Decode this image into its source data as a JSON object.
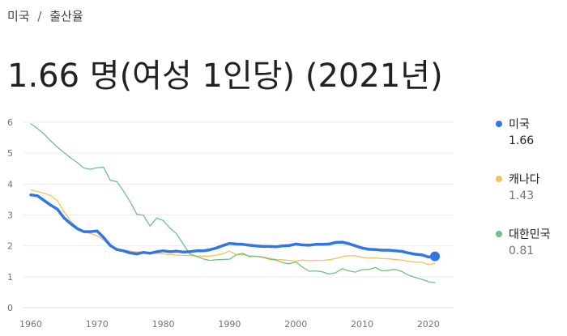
{
  "breadcrumb": {
    "country": "미국",
    "separator": "/",
    "metric": "출산율"
  },
  "headline": "1.66 명(여성 1인당) (2021년)",
  "colors": {
    "us": "#3276e6",
    "canada": "#f7c05a",
    "korea": "#6dc287",
    "grid": "#ececec",
    "axis_text": "#70757a"
  },
  "legend": [
    {
      "name": "미국",
      "value": "1.66",
      "color": "#3276e6",
      "value_color": "#202124"
    },
    {
      "name": "캐나다",
      "value": "1.43",
      "color": "#f7c05a",
      "value_color": "#70757a"
    },
    {
      "name": "대한민국",
      "value": "0.81",
      "color": "#6dc287",
      "value_color": "#70757a"
    }
  ],
  "chart_data": {
    "type": "line",
    "title": "",
    "xlabel": "",
    "ylabel": "",
    "xlim": [
      1960,
      2021
    ],
    "ylim": [
      0,
      6
    ],
    "y_ticks": [
      "0",
      "1",
      "2",
      "3",
      "4",
      "5",
      "6"
    ],
    "x_ticks": [
      "1960",
      "1970",
      "1980",
      "1990",
      "2000",
      "2010",
      "2020"
    ],
    "grid": true,
    "legend_position": "right",
    "series": [
      {
        "name": "미국",
        "color": "#3276e6",
        "highlight_last": true,
        "x": [
          1960,
          1961,
          1962,
          1963,
          1964,
          1965,
          1966,
          1967,
          1968,
          1969,
          1970,
          1971,
          1972,
          1973,
          1974,
          1975,
          1976,
          1977,
          1978,
          1979,
          1980,
          1981,
          1982,
          1983,
          1984,
          1985,
          1986,
          1987,
          1988,
          1989,
          1990,
          1991,
          1992,
          1993,
          1994,
          1995,
          1996,
          1997,
          1998,
          1999,
          2000,
          2001,
          2002,
          2003,
          2004,
          2005,
          2006,
          2007,
          2008,
          2009,
          2010,
          2011,
          2012,
          2013,
          2014,
          2015,
          2016,
          2017,
          2018,
          2019,
          2020,
          2021
        ],
        "y": [
          3.65,
          3.62,
          3.47,
          3.32,
          3.19,
          2.91,
          2.72,
          2.56,
          2.46,
          2.46,
          2.48,
          2.27,
          2.01,
          1.88,
          1.84,
          1.77,
          1.74,
          1.79,
          1.76,
          1.81,
          1.84,
          1.81,
          1.83,
          1.8,
          1.81,
          1.84,
          1.84,
          1.87,
          1.93,
          2.01,
          2.08,
          2.06,
          2.05,
          2.02,
          2.0,
          1.98,
          1.98,
          1.97,
          2.0,
          2.01,
          2.06,
          2.03,
          2.02,
          2.05,
          2.05,
          2.06,
          2.11,
          2.12,
          2.07,
          2.0,
          1.93,
          1.89,
          1.88,
          1.86,
          1.86,
          1.84,
          1.82,
          1.77,
          1.73,
          1.71,
          1.64,
          1.66
        ]
      },
      {
        "name": "캐나다",
        "color": "#f7c05a",
        "highlight_last": false,
        "x": [
          1960,
          1961,
          1962,
          1963,
          1964,
          1965,
          1966,
          1967,
          1968,
          1969,
          1970,
          1971,
          1972,
          1973,
          1974,
          1975,
          1976,
          1977,
          1978,
          1979,
          1980,
          1981,
          1982,
          1983,
          1984,
          1985,
          1986,
          1987,
          1988,
          1989,
          1990,
          1991,
          1992,
          1993,
          1994,
          1995,
          1996,
          1997,
          1998,
          1999,
          2000,
          2001,
          2002,
          2003,
          2004,
          2005,
          2006,
          2007,
          2008,
          2009,
          2010,
          2011,
          2012,
          2013,
          2014,
          2015,
          2016,
          2017,
          2018,
          2019,
          2020,
          2021
        ],
        "y": [
          3.81,
          3.76,
          3.7,
          3.63,
          3.47,
          3.11,
          2.81,
          2.6,
          2.45,
          2.4,
          2.33,
          2.19,
          1.98,
          1.9,
          1.86,
          1.83,
          1.8,
          1.8,
          1.76,
          1.76,
          1.74,
          1.72,
          1.7,
          1.69,
          1.69,
          1.67,
          1.67,
          1.67,
          1.7,
          1.75,
          1.83,
          1.72,
          1.71,
          1.68,
          1.67,
          1.64,
          1.6,
          1.56,
          1.55,
          1.53,
          1.51,
          1.54,
          1.52,
          1.53,
          1.53,
          1.55,
          1.59,
          1.65,
          1.68,
          1.68,
          1.63,
          1.61,
          1.61,
          1.59,
          1.58,
          1.56,
          1.54,
          1.5,
          1.47,
          1.47,
          1.4,
          1.43
        ]
      },
      {
        "name": "대한민국",
        "color": "#6dc287",
        "highlight_last": false,
        "x": [
          1960,
          1961,
          1962,
          1963,
          1964,
          1965,
          1966,
          1967,
          1968,
          1969,
          1970,
          1971,
          1972,
          1973,
          1974,
          1975,
          1976,
          1977,
          1978,
          1979,
          1980,
          1981,
          1982,
          1983,
          1984,
          1985,
          1986,
          1987,
          1988,
          1989,
          1990,
          1991,
          1992,
          1993,
          1994,
          1995,
          1996,
          1997,
          1998,
          1999,
          2000,
          2001,
          2002,
          2003,
          2004,
          2005,
          2006,
          2007,
          2008,
          2009,
          2010,
          2011,
          2012,
          2013,
          2014,
          2015,
          2016,
          2017,
          2018,
          2019,
          2020,
          2021
        ],
        "y": [
          5.95,
          5.8,
          5.62,
          5.4,
          5.2,
          5.02,
          4.85,
          4.7,
          4.52,
          4.48,
          4.53,
          4.54,
          4.12,
          4.08,
          3.77,
          3.43,
          3.02,
          2.99,
          2.64,
          2.9,
          2.82,
          2.57,
          2.39,
          2.06,
          1.74,
          1.66,
          1.58,
          1.53,
          1.55,
          1.56,
          1.57,
          1.71,
          1.76,
          1.65,
          1.66,
          1.63,
          1.57,
          1.54,
          1.46,
          1.42,
          1.48,
          1.31,
          1.18,
          1.19,
          1.16,
          1.09,
          1.13,
          1.26,
          1.19,
          1.15,
          1.23,
          1.24,
          1.3,
          1.19,
          1.21,
          1.24,
          1.17,
          1.05,
          0.98,
          0.92,
          0.84,
          0.81
        ]
      }
    ]
  }
}
